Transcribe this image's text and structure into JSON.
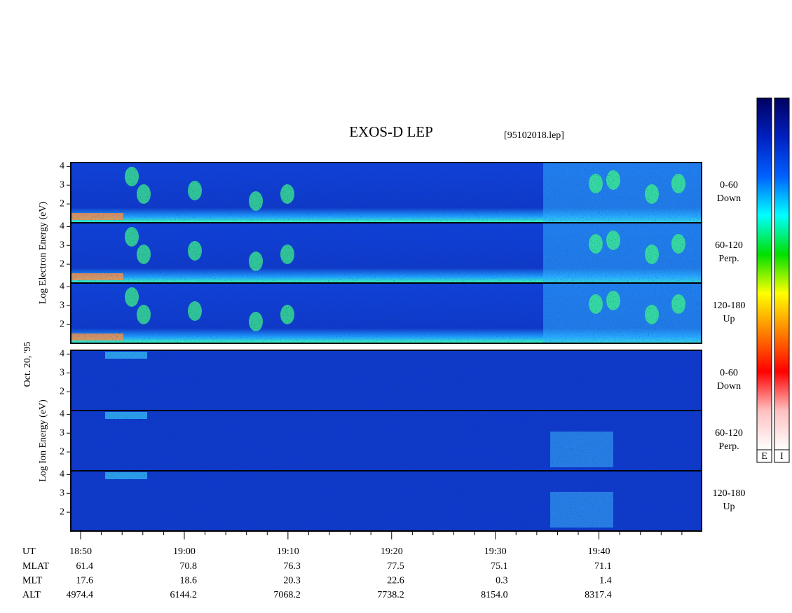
{
  "chart_data": {
    "type": "spectrogram",
    "title": "EXOS-D LEP",
    "file": "[95102018.lep]",
    "date": "Oct. 20, '95",
    "groups": [
      {
        "ylabel": "Log Electron Energy (eV)",
        "panels": [
          {
            "angle": "0-60",
            "direction": "Down"
          },
          {
            "angle": "60-120",
            "direction": "Perp."
          },
          {
            "angle": "120-180",
            "direction": "Up"
          }
        ]
      },
      {
        "ylabel": "Log Ion Energy (eV)",
        "panels": [
          {
            "angle": "0-60",
            "direction": "Down"
          },
          {
            "angle": "60-120",
            "direction": "Perp."
          },
          {
            "angle": "120-180",
            "direction": "Up"
          }
        ]
      }
    ],
    "ylim": [
      1,
      4.2
    ],
    "yticks": [
      2,
      3,
      4
    ],
    "xlabel": "UT",
    "xlim": [
      49.05,
      109.9
    ],
    "xticks": [
      {
        "value": 50,
        "label": "18:50"
      },
      {
        "value": 60,
        "label": "19:00"
      },
      {
        "value": 70,
        "label": "19:10"
      },
      {
        "value": 80,
        "label": "19:20"
      },
      {
        "value": 90,
        "label": "19:30"
      },
      {
        "value": 100,
        "label": "19:40"
      }
    ],
    "xminorticks": [
      52,
      54,
      56,
      58,
      62,
      64,
      66,
      68,
      72,
      74,
      76,
      78,
      82,
      84,
      86,
      88,
      92,
      94,
      96,
      98,
      102,
      104,
      106,
      108
    ],
    "orbit": [
      {
        "name": "MLAT",
        "values": [
          "61.4",
          "70.8",
          "76.3",
          "77.5",
          "75.1",
          "71.1"
        ]
      },
      {
        "name": "MLT",
        "values": [
          "17.6",
          "18.6",
          "20.3",
          "22.6",
          "0.3",
          "1.4"
        ]
      },
      {
        "name": "ALT",
        "values": [
          "4974.4",
          "6144.2",
          "7068.2",
          "7738.2",
          "8154.0",
          "8317.4"
        ]
      }
    ],
    "colorbars": [
      "E",
      "I"
    ],
    "colorscale": [
      "#000060",
      "#0020c0",
      "#0060ff",
      "#00ffff",
      "#00e000",
      "#ffff00",
      "#ff8000",
      "#ff0000",
      "#ffc0c0",
      "#ffffff"
    ]
  }
}
